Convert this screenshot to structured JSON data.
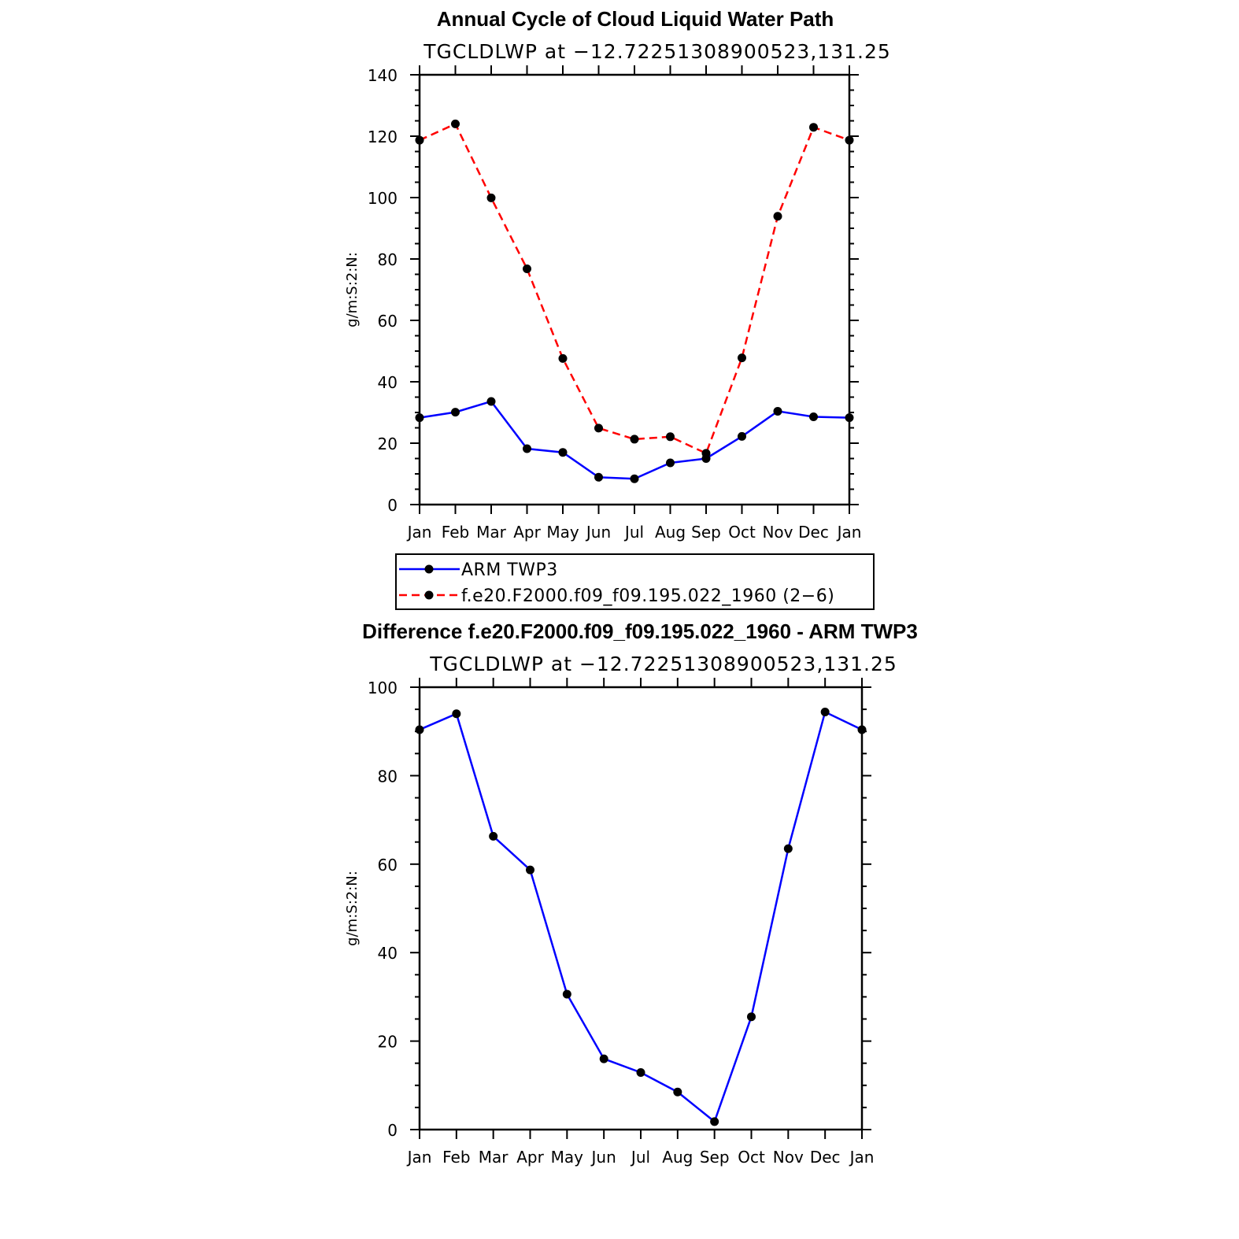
{
  "chart_data": [
    {
      "type": "line",
      "title": "Annual Cycle of Cloud Liquid Water Path",
      "subtitle": "TGCLDLWP at −12.72251308900523,131.25",
      "ylabel": "g/m:S:2:N:",
      "xlabel": "",
      "categories": [
        "Jan",
        "Feb",
        "Mar",
        "Apr",
        "May",
        "Jun",
        "Jul",
        "Aug",
        "Sep",
        "Oct",
        "Nov",
        "Dec",
        "Jan"
      ],
      "ylim": [
        0,
        140
      ],
      "yticks": [
        0,
        20,
        40,
        60,
        80,
        100,
        120,
        140
      ],
      "grid": false,
      "series": [
        {
          "name": "ARM TWP3",
          "color": "#0000ff",
          "dash": "solid",
          "values": [
            28.3,
            30.1,
            33.6,
            18.2,
            17.0,
            8.9,
            8.4,
            13.6,
            15.0,
            22.2,
            30.4,
            28.6,
            28.3
          ]
        },
        {
          "name": "f.e20.F2000.f09_f09.195.022_1960 (2−6)",
          "color": "#ff0000",
          "dash": "dashed",
          "values": [
            118.7,
            124.0,
            99.9,
            76.8,
            47.6,
            24.9,
            21.3,
            22.1,
            16.7,
            47.8,
            93.9,
            122.9,
            118.7
          ]
        }
      ],
      "legend_position": "below"
    },
    {
      "type": "line",
      "title": "Difference f.e20.F2000.f09_f09.195.022_1960 - ARM TWP3",
      "subtitle": "TGCLDLWP at −12.72251308900523,131.25",
      "ylabel": "g/m:S:2:N:",
      "xlabel": "",
      "categories": [
        "Jan",
        "Feb",
        "Mar",
        "Apr",
        "May",
        "Jun",
        "Jul",
        "Aug",
        "Sep",
        "Oct",
        "Nov",
        "Dec",
        "Jan"
      ],
      "ylim": [
        0,
        100
      ],
      "yticks": [
        0,
        20,
        40,
        60,
        80,
        100
      ],
      "grid": false,
      "series": [
        {
          "color": "#0000ff",
          "dash": "solid",
          "values": [
            90.4,
            94.0,
            66.3,
            58.7,
            30.6,
            16.0,
            12.9,
            8.5,
            1.8,
            25.5,
            63.5,
            94.4,
            90.4
          ]
        }
      ]
    }
  ]
}
